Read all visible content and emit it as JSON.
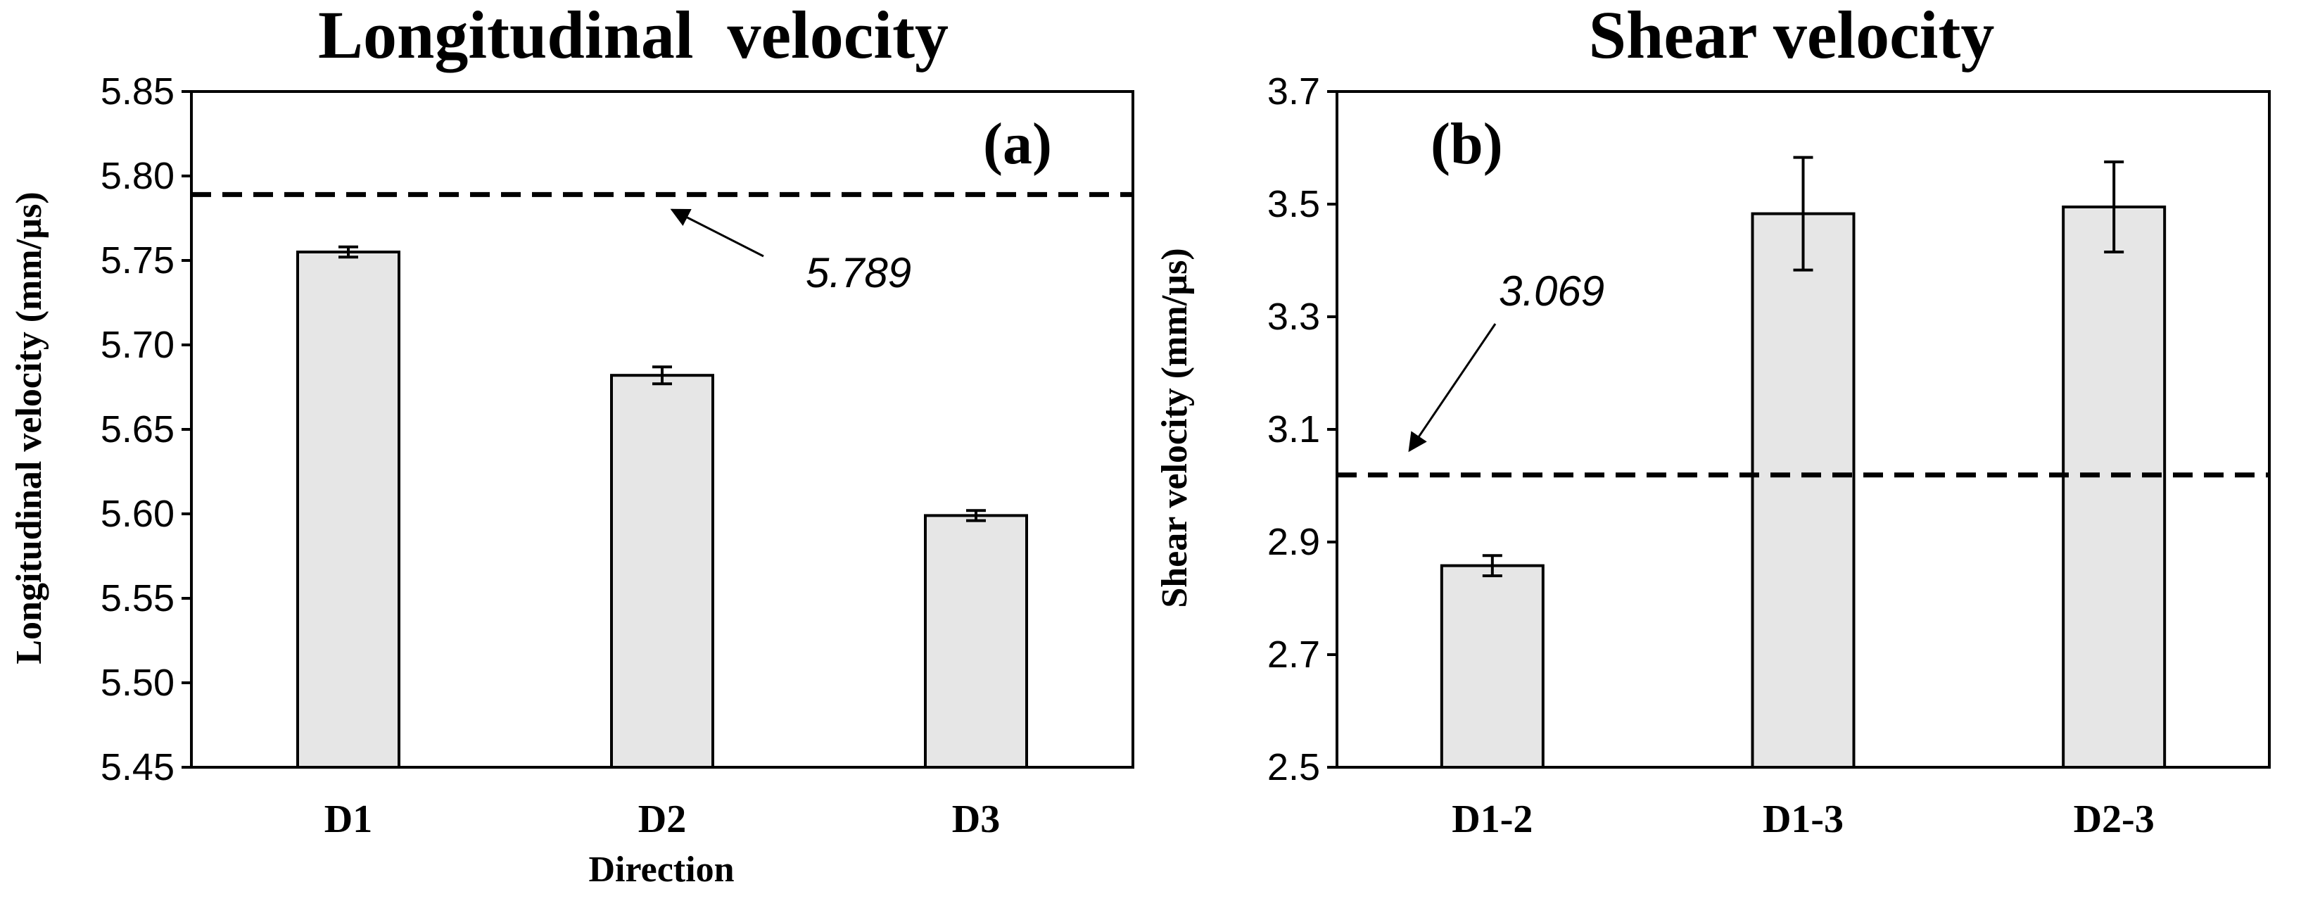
{
  "chart_data": [
    {
      "type": "bar",
      "title": "Longitudinal  velocity",
      "panel_label": "(a)",
      "xlabel": "Direction",
      "ylabel": "Longitudinal velocity (mm/µs)",
      "categories": [
        "D1",
        "D2",
        "D3"
      ],
      "values": [
        5.755,
        5.682,
        5.599
      ],
      "errors": [
        0.003,
        0.005,
        0.003
      ],
      "ylim": [
        5.45,
        5.85
      ],
      "yticks": [
        "5.45",
        "5.50",
        "5.55",
        "5.60",
        "5.65",
        "5.70",
        "5.75",
        "5.80",
        "5.85"
      ],
      "reference_line": {
        "value": 5.789,
        "label": "5.789"
      },
      "grid": false
    },
    {
      "type": "bar",
      "title": "Shear velocity",
      "panel_label": "(b)",
      "xlabel": "",
      "ylabel": "Shear velocity (mm/µs)",
      "categories": [
        "D1-2",
        "D1-3",
        "D2-3"
      ],
      "values": [
        2.858,
        3.483,
        3.495
      ],
      "errors": [
        0.018,
        0.1,
        0.08
      ],
      "ylim": [
        2.5,
        3.7
      ],
      "yticks": [
        "2.5",
        "2.7",
        "2.9",
        "3.1",
        "3.3",
        "3.5",
        "3.7"
      ],
      "reference_line": {
        "value": 3.069,
        "label": "3.069"
      },
      "grid": false
    }
  ]
}
